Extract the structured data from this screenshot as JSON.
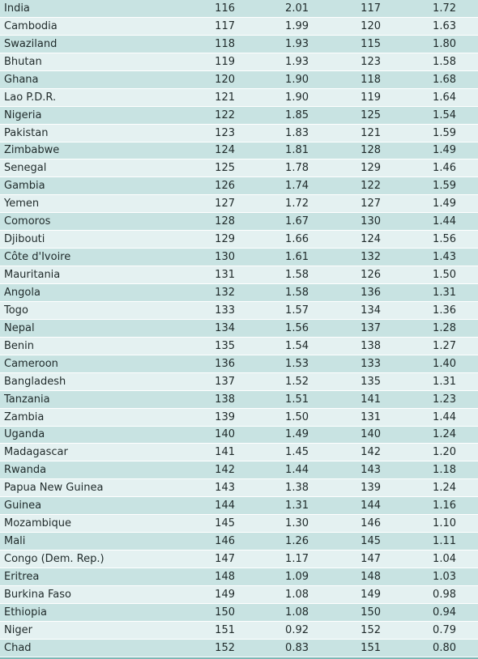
{
  "rows": [
    {
      "country": "India",
      "rank1": "116",
      "value1": "2.01",
      "rank2": "117",
      "value2": "1.72"
    },
    {
      "country": "Cambodia",
      "rank1": "117",
      "value1": "1.99",
      "rank2": "120",
      "value2": "1.63"
    },
    {
      "country": "Swaziland",
      "rank1": "118",
      "value1": "1.93",
      "rank2": "115",
      "value2": "1.80"
    },
    {
      "country": "Bhutan",
      "rank1": "119",
      "value1": "1.93",
      "rank2": "123",
      "value2": "1.58"
    },
    {
      "country": "Ghana",
      "rank1": "120",
      "value1": "1.90",
      "rank2": "118",
      "value2": "1.68"
    },
    {
      "country": "Lao P.D.R.",
      "rank1": "121",
      "value1": "1.90",
      "rank2": "119",
      "value2": "1.64"
    },
    {
      "country": "Nigeria",
      "rank1": "122",
      "value1": "1.85",
      "rank2": "125",
      "value2": "1.54"
    },
    {
      "country": "Pakistan",
      "rank1": "123",
      "value1": "1.83",
      "rank2": "121",
      "value2": "1.59"
    },
    {
      "country": "Zimbabwe",
      "rank1": "124",
      "value1": "1.81",
      "rank2": "128",
      "value2": "1.49"
    },
    {
      "country": "Senegal",
      "rank1": "125",
      "value1": "1.78",
      "rank2": "129",
      "value2": "1.46"
    },
    {
      "country": "Gambia",
      "rank1": "126",
      "value1": "1.74",
      "rank2": "122",
      "value2": "1.59"
    },
    {
      "country": "Yemen",
      "rank1": "127",
      "value1": "1.72",
      "rank2": "127",
      "value2": "1.49"
    },
    {
      "country": "Comoros",
      "rank1": "128",
      "value1": "1.67",
      "rank2": "130",
      "value2": "1.44"
    },
    {
      "country": "Djibouti",
      "rank1": "129",
      "value1": "1.66",
      "rank2": "124",
      "value2": "1.56"
    },
    {
      "country": "Côte d'Ivoire",
      "rank1": "130",
      "value1": "1.61",
      "rank2": "132",
      "value2": "1.43"
    },
    {
      "country": "Mauritania",
      "rank1": "131",
      "value1": "1.58",
      "rank2": "126",
      "value2": "1.50"
    },
    {
      "country": "Angola",
      "rank1": "132",
      "value1": "1.58",
      "rank2": "136",
      "value2": "1.31"
    },
    {
      "country": "Togo",
      "rank1": "133",
      "value1": "1.57",
      "rank2": "134",
      "value2": "1.36"
    },
    {
      "country": "Nepal",
      "rank1": "134",
      "value1": "1.56",
      "rank2": "137",
      "value2": "1.28"
    },
    {
      "country": "Benin",
      "rank1": "135",
      "value1": "1.54",
      "rank2": "138",
      "value2": "1.27"
    },
    {
      "country": "Cameroon",
      "rank1": "136",
      "value1": "1.53",
      "rank2": "133",
      "value2": "1.40"
    },
    {
      "country": "Bangladesh",
      "rank1": "137",
      "value1": "1.52",
      "rank2": "135",
      "value2": "1.31"
    },
    {
      "country": "Tanzania",
      "rank1": "138",
      "value1": "1.51",
      "rank2": "141",
      "value2": "1.23"
    },
    {
      "country": "Zambia",
      "rank1": "139",
      "value1": "1.50",
      "rank2": "131",
      "value2": "1.44"
    },
    {
      "country": "Uganda",
      "rank1": "140",
      "value1": "1.49",
      "rank2": "140",
      "value2": "1.24"
    },
    {
      "country": "Madagascar",
      "rank1": "141",
      "value1": "1.45",
      "rank2": "142",
      "value2": "1.20"
    },
    {
      "country": "Rwanda",
      "rank1": "142",
      "value1": "1.44",
      "rank2": "143",
      "value2": "1.18"
    },
    {
      "country": "Papua New Guinea",
      "rank1": "143",
      "value1": "1.38",
      "rank2": "139",
      "value2": "1.24"
    },
    {
      "country": "Guinea",
      "rank1": "144",
      "value1": "1.31",
      "rank2": "144",
      "value2": "1.16"
    },
    {
      "country": "Mozambique",
      "rank1": "145",
      "value1": "1.30",
      "rank2": "146",
      "value2": "1.10"
    },
    {
      "country": "Mali",
      "rank1": "146",
      "value1": "1.26",
      "rank2": "145",
      "value2": "1.11"
    },
    {
      "country": "Congo (Dem. Rep.)",
      "rank1": "147",
      "value1": "1.17",
      "rank2": "147",
      "value2": "1.04"
    },
    {
      "country": "Eritrea",
      "rank1": "148",
      "value1": "1.09",
      "rank2": "148",
      "value2": "1.03"
    },
    {
      "country": "Burkina Faso",
      "rank1": "149",
      "value1": "1.08",
      "rank2": "149",
      "value2": "0.98"
    },
    {
      "country": "Ethiopia",
      "rank1": "150",
      "value1": "1.08",
      "rank2": "150",
      "value2": "0.94"
    },
    {
      "country": "Niger",
      "rank1": "151",
      "value1": "0.92",
      "rank2": "152",
      "value2": "0.79"
    },
    {
      "country": "Chad",
      "rank1": "152",
      "value1": "0.83",
      "rank2": "151",
      "value2": "0.80"
    }
  ]
}
